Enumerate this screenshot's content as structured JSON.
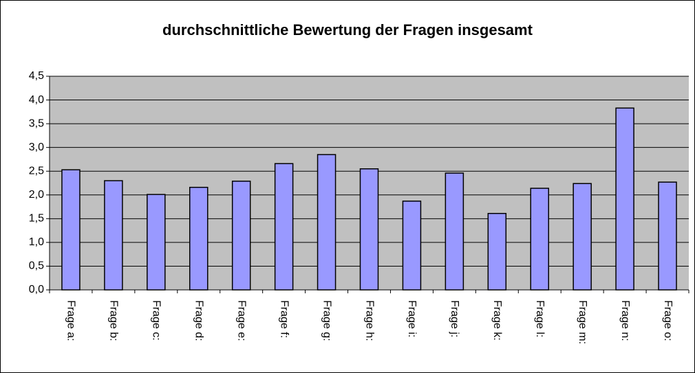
{
  "chart_data": {
    "type": "bar",
    "title": "durchschnittliche Bewertung der Fragen insgesamt",
    "categories": [
      "Frage a:",
      "Frage b:",
      "Frage c:",
      "Frage d:",
      "Frage e:",
      "Frage f:",
      "Frage g:",
      "Frage h:",
      "Frage i:",
      "Frage j:",
      "Frage k:",
      "Frage l:",
      "Frage m:",
      "Frage n:",
      "Frage o:"
    ],
    "values": [
      2.53,
      2.3,
      2.01,
      2.16,
      2.29,
      2.66,
      2.85,
      2.55,
      1.87,
      2.46,
      1.61,
      2.14,
      2.24,
      3.83,
      2.27
    ],
    "color": "#9999ff",
    "ylim": [
      0,
      4.5
    ],
    "yticks": [
      {
        "value": 0,
        "label": "0,0"
      },
      {
        "value": 0.5,
        "label": "0,5"
      },
      {
        "value": 1,
        "label": "1,0"
      },
      {
        "value": 1.5,
        "label": "1,5"
      },
      {
        "value": 2,
        "label": "2,0"
      },
      {
        "value": 2.5,
        "label": "2,5"
      },
      {
        "value": 3,
        "label": "3,0"
      },
      {
        "value": 3.5,
        "label": "3,5"
      },
      {
        "value": 4,
        "label": "4,0"
      },
      {
        "value": 4.5,
        "label": "4,5"
      }
    ],
    "grid": true
  }
}
